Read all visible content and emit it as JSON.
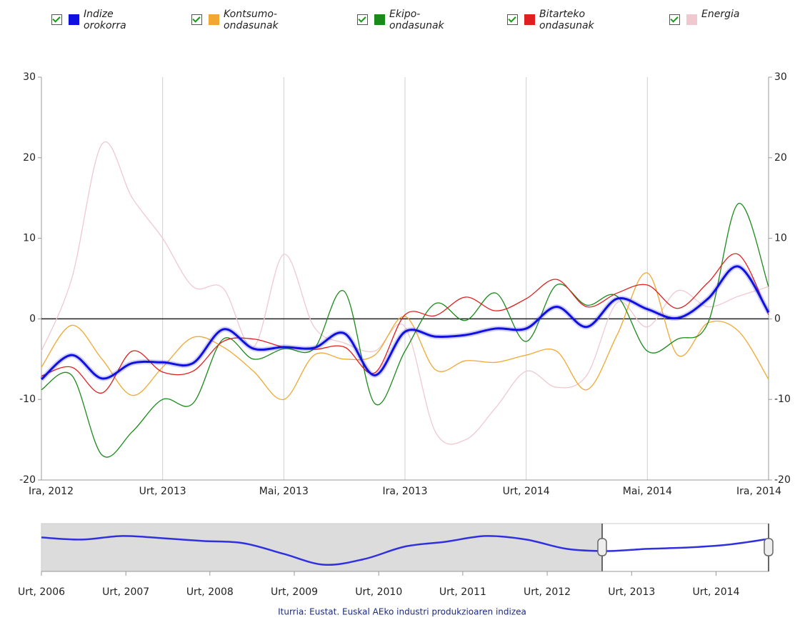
{
  "chart_data": {
    "type": "line",
    "x": [
      0,
      1,
      2,
      3,
      4,
      5,
      6,
      7,
      8,
      9,
      10,
      11,
      12,
      13,
      14,
      15,
      16,
      17,
      18,
      19,
      20,
      21,
      22,
      23,
      24
    ],
    "xlim": [
      0,
      24
    ],
    "xticks": [
      {
        "value": 0,
        "label": "Ira, 2012"
      },
      {
        "value": 4,
        "label": "Urt, 2013"
      },
      {
        "value": 8,
        "label": "Mai, 2013"
      },
      {
        "value": 12,
        "label": "Ira, 2013"
      },
      {
        "value": 16,
        "label": "Urt, 2014"
      },
      {
        "value": 20,
        "label": "Mai, 2014"
      },
      {
        "value": 24,
        "label": "Ira, 2014"
      }
    ],
    "ylim": [
      -20,
      30
    ],
    "yticks": [
      -20,
      -10,
      0,
      10,
      20,
      30
    ],
    "y2lim": [
      -20,
      30
    ],
    "y2ticks": [
      -20,
      -10,
      0,
      10,
      20,
      30
    ],
    "grid": true,
    "series": [
      {
        "name": "Energia",
        "color": "#f0c8d0",
        "values": [
          -4,
          5,
          21.7,
          15,
          10,
          4,
          3.8,
          -3.5,
          8,
          -1,
          -3,
          -4,
          -1,
          -14,
          -15,
          -11,
          -6.5,
          -8.5,
          -7,
          2,
          -1,
          3.5,
          1.5,
          2.8,
          4
        ]
      },
      {
        "name": "Kontsumo-ondasunak",
        "color": "#f0a830",
        "values": [
          -6,
          -0.8,
          -5,
          -9.5,
          -6,
          -2.3,
          -3.5,
          -6.5,
          -10,
          -4.5,
          -5,
          -4.5,
          0.3,
          -6.3,
          -5.2,
          -5.4,
          -4.5,
          -4,
          -8.8,
          -2,
          5.7,
          -4.5,
          -0.5,
          -1.5,
          -7.5
        ]
      },
      {
        "name": "Ekipo-ondasunak",
        "color": "#1a8a1a",
        "values": [
          -8.8,
          -7,
          -16.9,
          -14,
          -10,
          -10.5,
          -2.5,
          -5,
          -3.7,
          -3.7,
          3.4,
          -10.5,
          -4,
          1.9,
          -0.2,
          3.2,
          -2.8,
          4.2,
          1.7,
          2.8,
          -4,
          -2.5,
          -0.5,
          14.3,
          4
        ]
      },
      {
        "name": "Bitarteko ondasunak",
        "color": "#e02020",
        "values": [
          -7.1,
          -6,
          -9.2,
          -4,
          -6.6,
          -6.5,
          -2.8,
          -2.5,
          -3.5,
          -3.8,
          -3.5,
          -6.7,
          0.5,
          0.4,
          2.7,
          1,
          2.5,
          4.9,
          1.5,
          3.2,
          4.2,
          1.3,
          4.5,
          8,
          0.5
        ]
      },
      {
        "name": "Indize orokorra",
        "color": "#1010e0",
        "values": [
          -7.5,
          -4.5,
          -7.4,
          -5.5,
          -5.4,
          -5.5,
          -1.3,
          -3.7,
          -3.5,
          -3.6,
          -1.8,
          -7,
          -1.6,
          -2.2,
          -2,
          -1.2,
          -1.2,
          1.5,
          -1,
          2.5,
          1.2,
          0.1,
          2.5,
          6.5,
          0.8
        ]
      }
    ],
    "legend_order": [
      4,
      1,
      2,
      3,
      0
    ],
    "navigator": {
      "x": [
        0,
        1,
        2,
        3,
        4,
        5,
        6,
        7,
        8,
        9,
        10,
        11,
        12,
        13,
        14,
        15,
        16,
        17,
        18
      ],
      "values": [
        1.5,
        -0.7,
        3,
        0.7,
        -2.2,
        -4.5,
        -15.7,
        -27,
        -21,
        -8,
        -3,
        3,
        -0.7,
        -10.4,
        -12.7,
        -10.4,
        -9,
        -6,
        0
      ],
      "color": "#3030e0",
      "xlim": [
        0,
        18
      ],
      "ylim": [
        -34,
        16
      ],
      "xticks": [
        {
          "value": 0,
          "label": "Urt, 2006"
        },
        {
          "value": 2.09,
          "label": "Urt, 2007"
        },
        {
          "value": 4.17,
          "label": "Urt, 2008"
        },
        {
          "value": 6.26,
          "label": "Urt, 2009"
        },
        {
          "value": 8.35,
          "label": "Urt, 2010"
        },
        {
          "value": 10.43,
          "label": "Urt, 2011"
        },
        {
          "value": 12.52,
          "label": "Urt, 2012"
        },
        {
          "value": 14.61,
          "label": "Urt, 2013"
        },
        {
          "value": 16.7,
          "label": "Urt, 2014"
        }
      ],
      "selection": [
        13.88,
        18
      ]
    },
    "source": "Iturria: Eustat. Euskal AEko industri produkzioaren indizea"
  }
}
